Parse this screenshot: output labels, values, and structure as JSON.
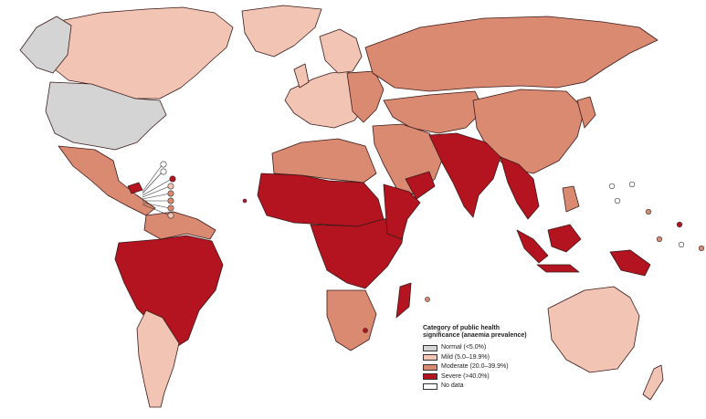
{
  "map": {
    "title": "",
    "colors": {
      "normal": "#d4d4d4",
      "mild": "#f2c4b4",
      "moderate": "#d98a70",
      "severe": "#b3141f",
      "no_data": "#ffffff"
    }
  },
  "legend": {
    "title_line1": "Category of public health",
    "title_line2": "significance (anaemia prevalence)",
    "items": [
      {
        "label": "Normal (<5.0%)",
        "color": "#d4d4d4"
      },
      {
        "label": "Mild (5.0–19.9%)",
        "color": "#f2c4b4"
      },
      {
        "label": "Moderate (20.0–39.9%)",
        "color": "#d98a70"
      },
      {
        "label": "Severe (>40.0%)",
        "color": "#b3141f"
      },
      {
        "label": "No data",
        "color": "#ffffff"
      }
    ]
  }
}
